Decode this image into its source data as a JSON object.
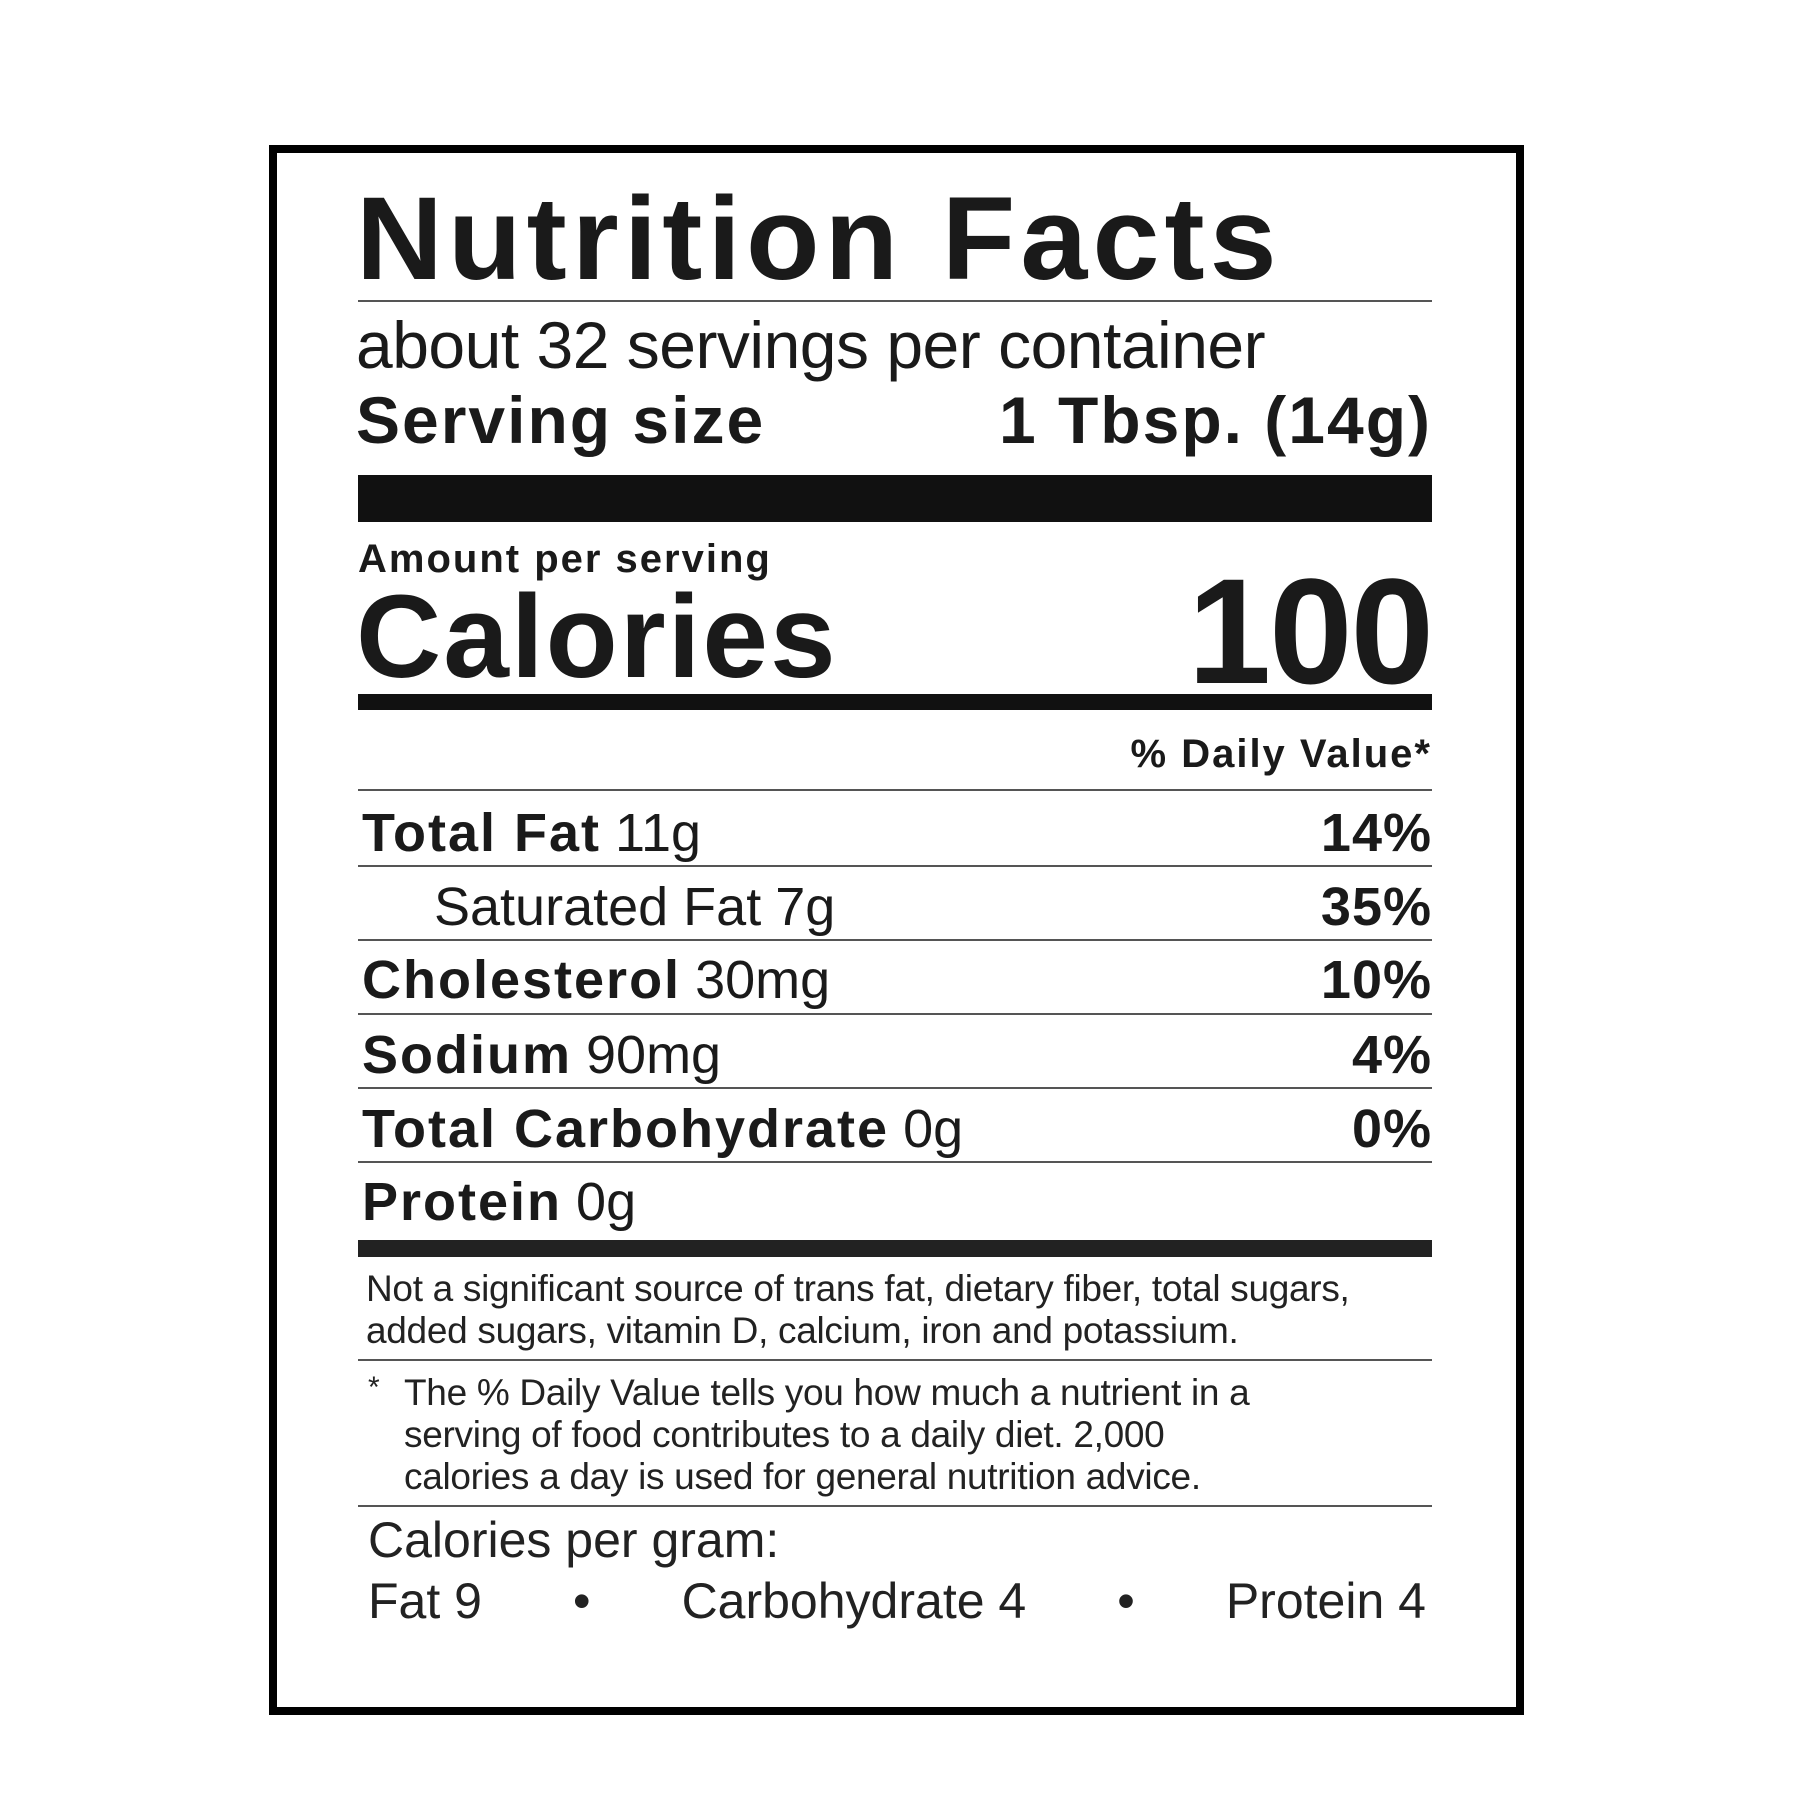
{
  "title": "Nutrition Facts",
  "servings_per_container": "about 32 servings per container",
  "serving_size": {
    "label": "Serving size",
    "value": "1 Tbsp. (14g)"
  },
  "amount_per_serving": "Amount per serving",
  "calories": {
    "label": "Calories",
    "value": "100"
  },
  "daily_value_header": "% Daily Value*",
  "nutrients": [
    {
      "name": "Total Fat",
      "amount": "11g",
      "dv": "14%"
    },
    {
      "name": "Saturated Fat",
      "amount": "7g",
      "dv": "35%"
    },
    {
      "name": "Cholesterol",
      "amount": "30mg",
      "dv": "10%"
    },
    {
      "name": "Sodium",
      "amount": "90mg",
      "dv": "4%"
    },
    {
      "name": "Total Carbohydrate",
      "amount": "0g",
      "dv": "0%"
    },
    {
      "name": "Protein",
      "amount": "0g",
      "dv": ""
    }
  ],
  "not_significant": [
    "Not a significant source of trans fat, dietary fiber, total sugars,",
    "added sugars, vitamin D, calcium, iron and potassium."
  ],
  "footnote": {
    "marker": "*",
    "lines": [
      "The % Daily Value tells you how much a nutrient in a",
      "serving of food contributes to a daily diet. 2,000",
      "calories a day is used for general nutrition advice."
    ]
  },
  "calories_per_gram": {
    "label": "Calories per gram:",
    "fat": "Fat 9",
    "carbohydrate": "Carbohydrate 4",
    "protein": "Protein 4",
    "separator": "•"
  }
}
